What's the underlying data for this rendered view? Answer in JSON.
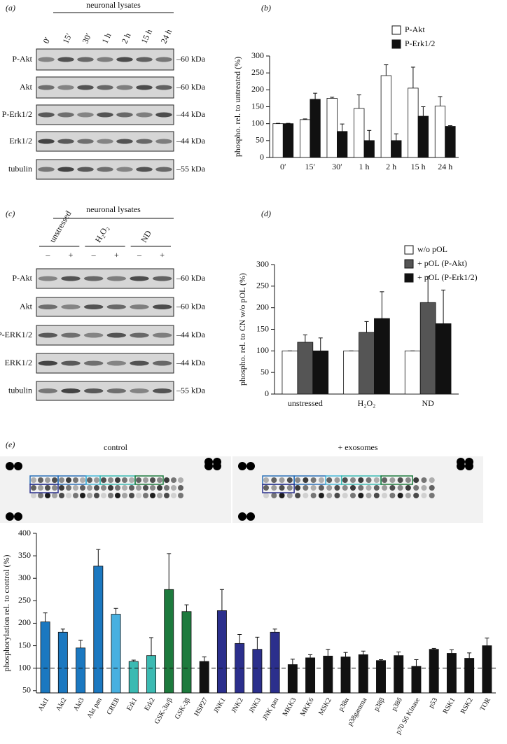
{
  "panel_labels": [
    "(a)",
    "(b)",
    "(c)",
    "(d)",
    "(e)"
  ],
  "blot_a": {
    "header": "neuronal lysates",
    "lanes": [
      "0′",
      "15′",
      "30′",
      "1 h",
      "2 h",
      "15 h",
      "24 h"
    ],
    "rows": [
      {
        "label": "P-Akt",
        "size": "–60 kDa"
      },
      {
        "label": "Akt",
        "size": "–60 kDa"
      },
      {
        "label": "P-Erk1/2",
        "size": "–44 kDa"
      },
      {
        "label": "Erk1/2",
        "size": "–44 kDa"
      },
      {
        "label": "tubulin",
        "size": "–55 kDa"
      }
    ]
  },
  "blot_c": {
    "header": "neuronal lysates",
    "groups": [
      "unstressed",
      "H₂O₂",
      "ND"
    ],
    "lane_signs": [
      "–",
      "+",
      "–",
      "+",
      "–",
      "+"
    ],
    "rows": [
      {
        "label": "P-Akt",
        "size": "–60 kDa"
      },
      {
        "label": "Akt",
        "size": "–60 kDa"
      },
      {
        "label": "P-ERK1/2",
        "size": "–44 kDa"
      },
      {
        "label": "ERK1/2",
        "size": "–44 kDa"
      },
      {
        "label": "tubulin",
        "size": "–55 kDa"
      }
    ]
  },
  "dot_blots": {
    "labels": [
      "control",
      "+ exosomes"
    ]
  },
  "chart_data": [
    {
      "type": "bar",
      "y_label": "phospho. rel. to untreated (%)",
      "categories": [
        "0′",
        "15′",
        "30′",
        "1 h",
        "2 h",
        "15 h",
        "24 h"
      ],
      "series": [
        {
          "name": "P-Akt",
          "color": "#ffffff",
          "values": [
            100,
            112,
            175,
            145,
            242,
            205,
            152
          ],
          "errors": [
            1,
            2,
            3,
            40,
            32,
            62,
            28
          ]
        },
        {
          "name": "P-Erk1/2",
          "color": "#111111",
          "values": [
            100,
            172,
            77,
            50,
            50,
            122,
            92
          ],
          "errors": [
            1,
            18,
            22,
            30,
            20,
            28,
            2
          ]
        }
      ],
      "ylim": [
        0,
        300
      ],
      "yticks": [
        0,
        50,
        100,
        150,
        200,
        250,
        300
      ],
      "legend": "top-right"
    },
    {
      "type": "bar",
      "y_label": "phospho. rel. to CN w/o pOL (%)",
      "categories": [
        "unstressed",
        "H₂O₂",
        "ND"
      ],
      "series": [
        {
          "name": "w/o pOL",
          "color": "#ffffff",
          "values": [
            100,
            100,
            100
          ],
          "errors": [
            0,
            0,
            0
          ]
        },
        {
          "name": "+ pOL (P-Akt)",
          "color": "#555555",
          "values": [
            120,
            143,
            212
          ],
          "errors": [
            17,
            25,
            60
          ]
        },
        {
          "name": "+ pOL (P-Erk1/2)",
          "color": "#111111",
          "values": [
            100,
            175,
            163
          ],
          "errors": [
            30,
            62,
            78
          ]
        }
      ],
      "ylim": [
        0,
        300
      ],
      "yticks": [
        0,
        50,
        100,
        150,
        200,
        250,
        300
      ],
      "legend": "top-right"
    },
    {
      "type": "bar",
      "y_label": "phosphorylation rel. to control (%)",
      "categories": [
        "Akt1",
        "Akt2",
        "Akt3",
        "Akt pan",
        "CREB",
        "Erk1",
        "Erk2",
        "GSK-3α/β",
        "GSK-3β",
        "HSP27",
        "JNK1",
        "JNK2",
        "JNK3",
        "JNK pan",
        "MKK3",
        "MKK6",
        "MSK2",
        "p38α",
        "p38gamma",
        "p38β",
        "p38δ",
        "p70 S6 Kinase",
        "p53",
        "RSK1",
        "RSK2",
        "TOR"
      ],
      "values": [
        203,
        180,
        145,
        327,
        220,
        115,
        128,
        275,
        226,
        115,
        228,
        155,
        142,
        180,
        108,
        123,
        127,
        125,
        130,
        117,
        128,
        104,
        142,
        133,
        122,
        150
      ],
      "errors": [
        20,
        7,
        17,
        37,
        13,
        3,
        40,
        80,
        15,
        10,
        47,
        20,
        27,
        7,
        12,
        7,
        15,
        10,
        8,
        2,
        8,
        15,
        2,
        8,
        12,
        17
      ],
      "colors": [
        "#1b78c0",
        "#1b78c0",
        "#1b78c0",
        "#1b78c0",
        "#48b0e0",
        "#3bbab2",
        "#3bbab2",
        "#1d7a3d",
        "#1d7a3d",
        "#111111",
        "#2b2f8c",
        "#2b2f8c",
        "#2b2f8c",
        "#2b2f8c",
        "#111111",
        "#111111",
        "#111111",
        "#111111",
        "#111111",
        "#111111",
        "#111111",
        "#111111",
        "#111111",
        "#111111",
        "#111111",
        "#111111"
      ],
      "reference_line": 100,
      "ylim": [
        45,
        400
      ],
      "yticks": [
        50,
        100,
        150,
        200,
        250,
        300,
        350,
        400
      ]
    }
  ]
}
